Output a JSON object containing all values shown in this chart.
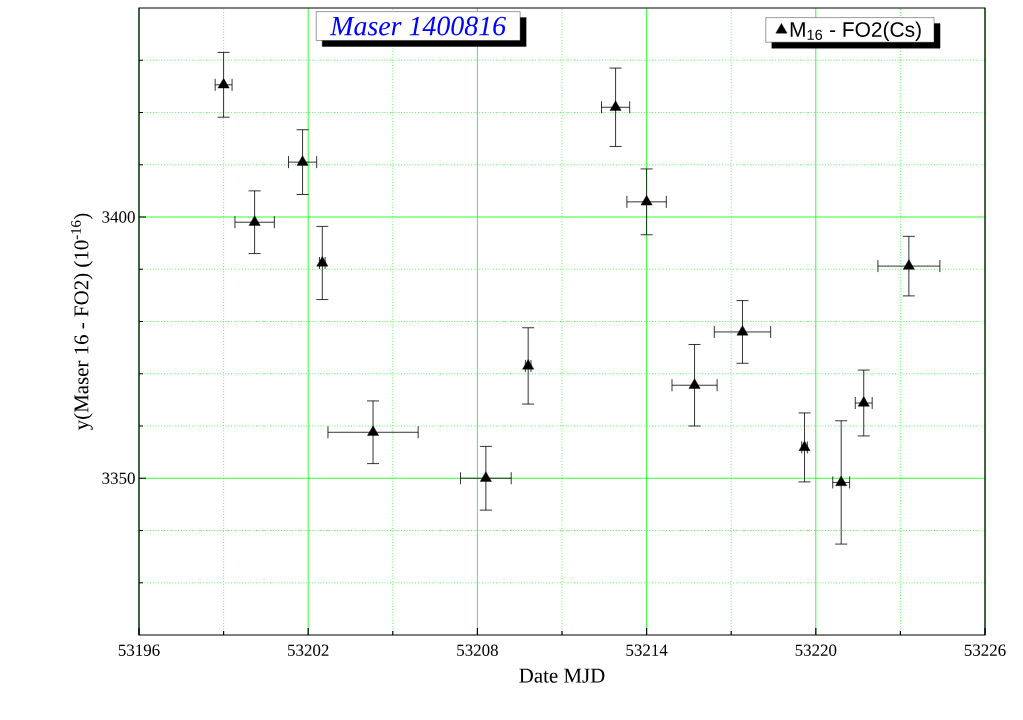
{
  "chart_data": {
    "type": "scatter",
    "title": "Maser 1400816",
    "xlabel": "Date MJD",
    "ylabel": "y(Maser 16 - FO2)  (10$^{-16}$)",
    "xlim": [
      53196,
      53226
    ],
    "ylim": [
      3320,
      3440
    ],
    "xticks": [
      53196,
      {
        "value": 53199,
        "label": null
      },
      53202,
      {
        "value": 53205,
        "label": null
      },
      53208,
      {
        "value": 53211,
        "label": null
      },
      53214,
      {
        "value": 53217,
        "label": null
      },
      53220,
      {
        "value": 53223,
        "label": null
      },
      53226
    ],
    "yticks": [
      {
        "value": 3330,
        "label": null
      },
      {
        "value": 3340,
        "label": null
      },
      3350,
      {
        "value": 3360,
        "label": null
      },
      {
        "value": 3370,
        "label": null
      },
      {
        "value": 3380,
        "label": null
      },
      {
        "value": 3390,
        "label": null
      },
      3400,
      {
        "value": 3410,
        "label": null
      },
      {
        "value": 3420,
        "label": null
      },
      {
        "value": 3430,
        "label": null
      }
    ],
    "grid": true,
    "legend": "top right",
    "marker": "triangle",
    "series": [
      {
        "name": "M$_{16}$ - FO2(Cs)",
        "color": "#000000",
        "x": [
          53199.0,
          53200.1,
          53201.8,
          53202.5,
          53204.3,
          53208.3,
          53209.8,
          53212.9,
          53214.0,
          53215.7,
          53217.4,
          53219.6,
          53220.9,
          53221.7,
          53223.3
        ],
        "values": [
          3425.3,
          3399.0,
          3410.5,
          3391.2,
          3358.8,
          3350.0,
          3371.5,
          3421.0,
          3402.9,
          3367.8,
          3378.0,
          3355.9,
          3349.2,
          3364.4,
          3390.6
        ],
        "errors": [
          6.2,
          6.0,
          6.2,
          7.0,
          6.0,
          6.1,
          7.3,
          7.5,
          6.3,
          7.8,
          6.0,
          6.6,
          11.8,
          6.3,
          5.7
        ],
        "xerrors": [
          0.3,
          0.7,
          0.5,
          0.1,
          1.6,
          0.9,
          0.1,
          0.5,
          0.7,
          0.8,
          1.0,
          0.1,
          0.3,
          0.3,
          1.1
        ]
      }
    ]
  }
}
